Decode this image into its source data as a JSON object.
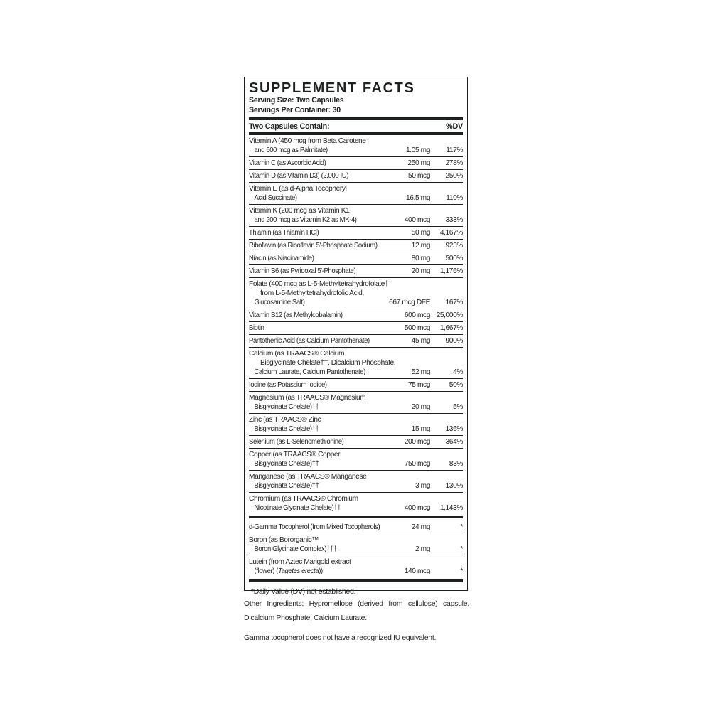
{
  "colors": {
    "ink": "#1d211e",
    "background": "#ffffff"
  },
  "label": {
    "title": "SUPPLEMENT FACTS",
    "serving_size": "Serving Size: Two Capsules",
    "servings_per_container": "Servings Per Container: 30",
    "column_header": "Two Capsules Contain:",
    "dv_header": "%DV",
    "rows": [
      {
        "name_lines": [
          "Vitamin A (450 mcg from Beta Carotene",
          "and 600 mcg as Palmitate)"
        ],
        "amount": "1.05 mg",
        "dv": "117%"
      },
      {
        "name_lines": [
          "Vitamin C (as Ascorbic Acid)"
        ],
        "amount": "250 mg",
        "dv": "278%"
      },
      {
        "name_lines": [
          "Vitamin D (as Vitamin D3) (2,000 IU)"
        ],
        "amount": "50 mcg",
        "dv": "250%"
      },
      {
        "name_lines": [
          "Vitamin E (as d-Alpha Tocopheryl",
          "Acid Succinate)"
        ],
        "amount": "16.5 mg",
        "dv": "110%"
      },
      {
        "name_lines": [
          "Vitamin K (200 mcg as Vitamin K1",
          "and 200 mcg as Vitamin K2 as MK-4)"
        ],
        "amount": "400 mcg",
        "dv": "333%"
      },
      {
        "name_lines": [
          "Thiamin (as Thiamin HCl)"
        ],
        "amount": "50 mg",
        "dv": "4,167%"
      },
      {
        "name_lines": [
          "Riboflavin (as Riboflavin 5'-Phosphate Sodium)"
        ],
        "amount": "12 mg",
        "dv": "923%"
      },
      {
        "name_lines": [
          "Niacin (as Niacinamide)"
        ],
        "amount": "80 mg",
        "dv": "500%"
      },
      {
        "name_lines": [
          "Vitamin B6 (as Pyridoxal 5'-Phosphate)"
        ],
        "amount": "20 mg",
        "dv": "1,176%"
      },
      {
        "name_lines": [
          "Folate (400 mcg as L-5-Methyltetrahydrofolate†",
          "from L-5-Methyltetrahydrofolic Acid,",
          "Glucosamine Salt)"
        ],
        "amount": "667 mcg DFE",
        "dv": "167%"
      },
      {
        "name_lines": [
          "Vitamin B12 (as Methylcobalamin)"
        ],
        "amount": "600 mcg",
        "dv": "25,000%"
      },
      {
        "name_lines": [
          "Biotin"
        ],
        "amount": "500 mcg",
        "dv": "1,667%"
      },
      {
        "name_lines": [
          "Pantothenic Acid (as Calcium Pantothenate)"
        ],
        "amount": "45 mg",
        "dv": "900%"
      },
      {
        "name_lines": [
          "Calcium (as TRAACS® Calcium",
          "Bisglycinate Chelate††, Dicalcium Phosphate,",
          "Calcium Laurate, Calcium Pantothenate)"
        ],
        "amount": "52 mg",
        "dv": "4%"
      },
      {
        "name_lines": [
          "Iodine (as Potassium Iodide)"
        ],
        "amount": "75 mcg",
        "dv": "50%"
      },
      {
        "name_lines": [
          "Magnesium (as TRAACS® Magnesium",
          "Bisglycinate Chelate)††"
        ],
        "amount": "20 mg",
        "dv": "5%"
      },
      {
        "name_lines": [
          "Zinc (as TRAACS® Zinc",
          "Bisglycinate Chelate)††"
        ],
        "amount": "15 mg",
        "dv": "136%"
      },
      {
        "name_lines": [
          "Selenium (as L-Selenomethionine)"
        ],
        "amount": "200 mcg",
        "dv": "364%"
      },
      {
        "name_lines": [
          "Copper (as TRAACS® Copper",
          "Bisglycinate Chelate)††"
        ],
        "amount": "750 mcg",
        "dv": "83%"
      },
      {
        "name_lines": [
          "Manganese (as TRAACS® Manganese",
          "Bisglycinate Chelate)††"
        ],
        "amount": "3 mg",
        "dv": "130%"
      },
      {
        "name_lines": [
          "Chromium (as TRAACS® Chromium",
          "Nicotinate Glycinate Chelate)††"
        ],
        "amount": "400 mcg",
        "dv": "1,143%"
      },
      {
        "type": "divider"
      },
      {
        "name_lines": [
          "d-Gamma Tocopherol (from Mixed Tocopherols)"
        ],
        "amount": "24 mg",
        "dv": "*"
      },
      {
        "name_lines": [
          "Boron (as Bororganic™",
          "Boron Glycinate Complex)†††"
        ],
        "amount": "2 mg",
        "dv": "*"
      },
      {
        "name_lines": [
          "Lutein (from Aztec Marigold extract",
          [
            {
              "t": "(flower) ("
            },
            {
              "t": "Tagetes erecta",
              "i": true
            },
            {
              "t": "))"
            }
          ]
        ],
        "amount": "140 mcg",
        "dv": "*"
      }
    ],
    "footnote": "*Daily Value (DV) not established."
  },
  "footer": {
    "other_ingredients": "Other Ingredients: Hypromellose (derived from cellulose) capsule, Dicalcium Phosphate, Calcium Laurate.",
    "iu_note": "Gamma tocopherol does not have a recognized IU equivalent."
  }
}
